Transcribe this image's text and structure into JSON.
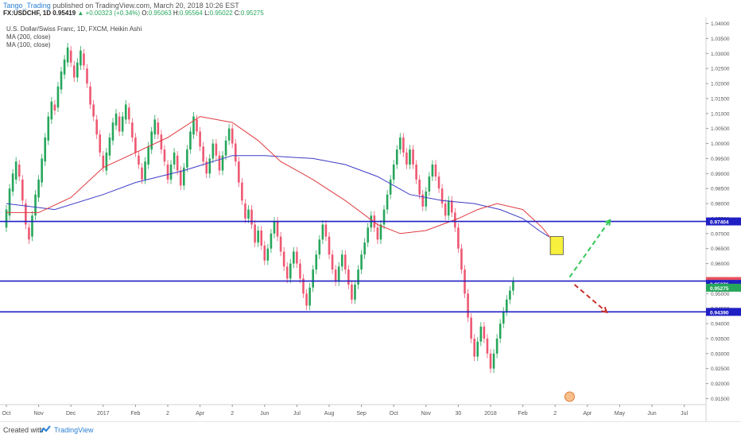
{
  "header": {
    "author": "Tango_Trading",
    "published": " published on TradingView.com, March 20, 2018 10:26 EST",
    "symbol_line": "FX:USDCHF, 1D",
    "last": "0.95419",
    "change": "+0.00323 (+0.34%)",
    "o_label": "O:",
    "o": "0.95063",
    "h_label": "H:",
    "h": "0.95564",
    "l_label": "L:",
    "l": "0.95022",
    "c_label": "C:",
    "c": "0.95275"
  },
  "legend": {
    "title": "U.S. Dollar/Swiss Franc, 1D, FXCM, Heikin Ashi",
    "ma200": "MA (200, close)",
    "ma100": "MA (100, close)"
  },
  "footer": {
    "created": "Created with",
    "brand": "TradingView"
  },
  "colors": {
    "up": "#26a65b",
    "down": "#ee5872",
    "ma200": "#3d3dc7",
    "ma100": "#e0393e",
    "hline": "#1f1fc4",
    "box_fill": "#f7f03c",
    "arrow_up": "#34c759",
    "arrow_down": "#c9302c"
  },
  "chart_data": {
    "type": "candlestick",
    "ylim": [
      0.913,
      1.042
    ],
    "y_ticks": [
      "1.04000",
      "1.03500",
      "1.03000",
      "1.02500",
      "1.02000",
      "1.01500",
      "1.01000",
      "1.00500",
      "1.00000",
      "0.99500",
      "0.99000",
      "0.98500",
      "0.98000",
      "0.97500",
      "0.97000",
      "0.96500",
      "0.96000",
      "0.95500",
      "0.95000",
      "0.94500",
      "0.94000",
      "0.93500",
      "0.93000",
      "0.92500",
      "0.92000",
      "0.91500"
    ],
    "x_ticks": [
      {
        "label": "Oct",
        "m": 0
      },
      {
        "label": "Nov",
        "m": 1
      },
      {
        "label": "Dec",
        "m": 2
      },
      {
        "label": "2017",
        "m": 3
      },
      {
        "label": "Feb",
        "m": 4
      },
      {
        "label": "2",
        "m": 5
      },
      {
        "label": "Apr",
        "m": 6
      },
      {
        "label": "2",
        "m": 7
      },
      {
        "label": "Jun",
        "m": 8
      },
      {
        "label": "Jul",
        "m": 9
      },
      {
        "label": "Aug",
        "m": 10
      },
      {
        "label": "Sep",
        "m": 11
      },
      {
        "label": "Oct",
        "m": 12
      },
      {
        "label": "Nov",
        "m": 13
      },
      {
        "label": "30",
        "m": 14
      },
      {
        "label": "2018",
        "m": 15
      },
      {
        "label": "Feb",
        "m": 16
      },
      {
        "label": "2",
        "m": 17
      },
      {
        "label": "Apr",
        "m": 18
      },
      {
        "label": "May",
        "m": 19
      },
      {
        "label": "Jun",
        "m": 20
      },
      {
        "label": "Jul",
        "m": 21
      }
    ],
    "levels": [
      {
        "name": "resistance-line",
        "value": 0.97404,
        "label": "0.97404",
        "bg": "#1f1fc4"
      },
      {
        "name": "mid-line",
        "value": 0.95418,
        "label": "0.95418",
        "bg": "#e8505b"
      },
      {
        "name": "support-line",
        "value": 0.9439,
        "label": "0.94390",
        "bg": "#1f1fc4"
      }
    ],
    "price_tags": [
      {
        "value": 0.95376,
        "label": "0.95376",
        "bg": "#1f1fc4"
      },
      {
        "value": 0.95275,
        "label": "0.95275",
        "bg": "#26a65b"
      }
    ],
    "ma200_pts": [
      [
        0,
        0.98
      ],
      [
        1.5,
        0.978
      ],
      [
        3,
        0.983
      ],
      [
        4,
        0.987
      ],
      [
        5.5,
        0.991
      ],
      [
        7,
        0.996
      ],
      [
        8,
        0.996
      ],
      [
        9.5,
        0.995
      ],
      [
        10.5,
        0.993
      ],
      [
        11.5,
        0.989
      ],
      [
        12.5,
        0.983
      ],
      [
        13.5,
        0.981
      ],
      [
        14.5,
        0.98
      ],
      [
        15.3,
        0.978
      ],
      [
        16,
        0.975
      ],
      [
        16.5,
        0.971
      ],
      [
        16.8,
        0.969
      ]
    ],
    "ma100_pts": [
      [
        0,
        0.977
      ],
      [
        1,
        0.977
      ],
      [
        2,
        0.982
      ],
      [
        3,
        0.992
      ],
      [
        4,
        0.997
      ],
      [
        5,
        1.002
      ],
      [
        6,
        1.009
      ],
      [
        7,
        1.007
      ],
      [
        7.8,
        1.001
      ],
      [
        8.5,
        0.994
      ],
      [
        9.5,
        0.988
      ],
      [
        10.5,
        0.981
      ],
      [
        11.5,
        0.973
      ],
      [
        12.2,
        0.97
      ],
      [
        13,
        0.971
      ],
      [
        14,
        0.975
      ],
      [
        14.6,
        0.978
      ],
      [
        15.2,
        0.98
      ],
      [
        16,
        0.978
      ],
      [
        16.6,
        0.972
      ],
      [
        16.9,
        0.968
      ]
    ],
    "candles": [
      [
        0,
        0.972,
        0.978
      ],
      [
        0.1,
        0.976,
        0.985
      ],
      [
        0.2,
        0.984,
        0.99
      ],
      [
        0.3,
        0.988,
        0.994
      ],
      [
        0.4,
        0.993,
        0.989
      ],
      [
        0.5,
        0.988,
        0.981
      ],
      [
        0.6,
        0.98,
        0.973
      ],
      [
        0.7,
        0.972,
        0.968
      ],
      [
        0.8,
        0.969,
        0.976
      ],
      [
        0.9,
        0.976,
        0.983
      ],
      [
        1.0,
        0.982,
        0.988
      ],
      [
        1.1,
        0.987,
        0.995
      ],
      [
        1.2,
        0.994,
        1.002
      ],
      [
        1.3,
        1.001,
        1.009
      ],
      [
        1.4,
        1.008,
        1.014
      ],
      [
        1.5,
        1.013,
        1.011
      ],
      [
        1.6,
        1.012,
        1.019
      ],
      [
        1.7,
        1.018,
        1.024
      ],
      [
        1.8,
        1.023,
        1.028
      ],
      [
        1.9,
        1.027,
        1.032
      ],
      [
        2.0,
        1.031,
        1.027
      ],
      [
        2.1,
        1.026,
        1.022
      ],
      [
        2.2,
        1.022,
        1.027
      ],
      [
        2.3,
        1.026,
        1.031
      ],
      [
        2.4,
        1.03,
        1.026
      ],
      [
        2.5,
        1.025,
        1.02
      ],
      [
        2.6,
        1.019,
        1.013
      ],
      [
        2.7,
        1.013,
        1.009
      ],
      [
        2.8,
        1.008,
        1.003
      ],
      [
        2.9,
        1.003,
        0.997
      ],
      [
        3.0,
        0.996,
        0.992
      ],
      [
        3.1,
        0.991,
        0.997
      ],
      [
        3.2,
        0.996,
        1.002
      ],
      [
        3.3,
        1.001,
        1.007
      ],
      [
        3.4,
        1.006,
        1.01
      ],
      [
        3.5,
        1.009,
        1.004
      ],
      [
        3.6,
        1.004,
        1.009
      ],
      [
        3.7,
        1.008,
        1.013
      ],
      [
        3.8,
        1.012,
        1.008
      ],
      [
        3.9,
        1.007,
        1.002
      ],
      [
        4.0,
        1.002,
        0.997
      ],
      [
        4.1,
        0.996,
        0.993
      ],
      [
        4.2,
        0.992,
        0.988
      ],
      [
        4.3,
        0.988,
        0.994
      ],
      [
        4.4,
        0.993,
        0.999
      ],
      [
        4.5,
        0.998,
        1.004
      ],
      [
        4.6,
        1.003,
        1.008
      ],
      [
        4.7,
        1.007,
        1.003
      ],
      [
        4.8,
        1.003,
        0.998
      ],
      [
        4.9,
        0.998,
        0.994
      ],
      [
        5.0,
        0.993,
        0.988
      ],
      [
        5.1,
        0.988,
        0.993
      ],
      [
        5.2,
        0.993,
        0.997
      ],
      [
        5.3,
        0.996,
        0.991
      ],
      [
        5.4,
        0.991,
        0.986
      ],
      [
        5.5,
        0.986,
        0.992
      ],
      [
        5.6,
        0.992,
        0.998
      ],
      [
        5.7,
        0.998,
        1.004
      ],
      [
        5.8,
        1.003,
        1.009
      ],
      [
        5.9,
        1.008,
        1.004
      ],
      [
        6.0,
        1.004,
        0.999
      ],
      [
        6.1,
        0.999,
        0.994
      ],
      [
        6.2,
        0.994,
        0.99
      ],
      [
        6.3,
        0.99,
        0.995
      ],
      [
        6.4,
        0.995,
        1.0
      ],
      [
        6.5,
        1.0,
        0.996
      ],
      [
        6.6,
        0.996,
        0.991
      ],
      [
        6.7,
        0.991,
        0.996
      ],
      [
        6.8,
        0.996,
        1.001
      ],
      [
        6.9,
        1.001,
        1.005
      ],
      [
        7.0,
        1.005,
        1.0
      ],
      [
        7.1,
        1.0,
        0.994
      ],
      [
        7.2,
        0.994,
        0.987
      ],
      [
        7.3,
        0.987,
        0.981
      ],
      [
        7.4,
        0.98,
        0.975
      ],
      [
        7.5,
        0.975,
        0.978
      ],
      [
        7.6,
        0.978,
        0.973
      ],
      [
        7.7,
        0.973,
        0.967
      ],
      [
        7.8,
        0.967,
        0.971
      ],
      [
        7.9,
        0.971,
        0.966
      ],
      [
        8.0,
        0.966,
        0.961
      ],
      [
        8.1,
        0.961,
        0.965
      ],
      [
        8.2,
        0.965,
        0.97
      ],
      [
        8.3,
        0.97,
        0.974
      ],
      [
        8.4,
        0.974,
        0.969
      ],
      [
        8.5,
        0.969,
        0.964
      ],
      [
        8.6,
        0.964,
        0.959
      ],
      [
        8.7,
        0.959,
        0.955
      ],
      [
        8.8,
        0.955,
        0.96
      ],
      [
        8.9,
        0.96,
        0.964
      ],
      [
        9.0,
        0.964,
        0.96
      ],
      [
        9.1,
        0.96,
        0.955
      ],
      [
        9.2,
        0.955,
        0.95
      ],
      [
        9.3,
        0.95,
        0.946
      ],
      [
        9.4,
        0.946,
        0.952
      ],
      [
        9.5,
        0.952,
        0.958
      ],
      [
        9.6,
        0.958,
        0.963
      ],
      [
        9.7,
        0.963,
        0.968
      ],
      [
        9.8,
        0.968,
        0.973
      ],
      [
        9.9,
        0.973,
        0.969
      ],
      [
        10.0,
        0.969,
        0.963
      ],
      [
        10.1,
        0.963,
        0.958
      ],
      [
        10.2,
        0.958,
        0.954
      ],
      [
        10.3,
        0.954,
        0.959
      ],
      [
        10.4,
        0.959,
        0.963
      ],
      [
        10.5,
        0.963,
        0.958
      ],
      [
        10.6,
        0.958,
        0.953
      ],
      [
        10.7,
        0.953,
        0.948
      ],
      [
        10.8,
        0.948,
        0.953
      ],
      [
        10.9,
        0.953,
        0.958
      ],
      [
        11.0,
        0.958,
        0.963
      ],
      [
        11.1,
        0.963,
        0.967
      ],
      [
        11.2,
        0.967,
        0.972
      ],
      [
        11.3,
        0.972,
        0.976
      ],
      [
        11.4,
        0.976,
        0.972
      ],
      [
        11.5,
        0.972,
        0.968
      ],
      [
        11.6,
        0.968,
        0.973
      ],
      [
        11.7,
        0.973,
        0.978
      ],
      [
        11.8,
        0.978,
        0.983
      ],
      [
        11.9,
        0.983,
        0.988
      ],
      [
        12.0,
        0.988,
        0.993
      ],
      [
        12.1,
        0.993,
        0.998
      ],
      [
        12.2,
        0.998,
        1.002
      ],
      [
        12.3,
        1.002,
        0.997
      ],
      [
        12.4,
        0.997,
        0.993
      ],
      [
        12.5,
        0.993,
        0.998
      ],
      [
        12.6,
        0.998,
        0.993
      ],
      [
        12.7,
        0.993,
        0.988
      ],
      [
        12.8,
        0.988,
        0.983
      ],
      [
        12.9,
        0.983,
        0.979
      ],
      [
        13.0,
        0.979,
        0.984
      ],
      [
        13.1,
        0.984,
        0.989
      ],
      [
        13.2,
        0.989,
        0.993
      ],
      [
        13.3,
        0.993,
        0.989
      ],
      [
        13.4,
        0.989,
        0.985
      ],
      [
        13.5,
        0.985,
        0.98
      ],
      [
        13.6,
        0.98,
        0.976
      ],
      [
        13.7,
        0.976,
        0.981
      ],
      [
        13.8,
        0.981,
        0.977
      ],
      [
        13.9,
        0.977,
        0.972
      ],
      [
        14.0,
        0.972,
        0.965
      ],
      [
        14.1,
        0.965,
        0.958
      ],
      [
        14.2,
        0.958,
        0.95
      ],
      [
        14.3,
        0.95,
        0.942
      ],
      [
        14.4,
        0.942,
        0.935
      ],
      [
        14.5,
        0.935,
        0.929
      ],
      [
        14.6,
        0.929,
        0.934
      ],
      [
        14.7,
        0.934,
        0.939
      ],
      [
        14.8,
        0.939,
        0.935
      ],
      [
        14.9,
        0.935,
        0.93
      ],
      [
        15.0,
        0.93,
        0.925
      ],
      [
        15.1,
        0.925,
        0.93
      ],
      [
        15.2,
        0.93,
        0.935
      ],
      [
        15.3,
        0.935,
        0.94
      ],
      [
        15.4,
        0.94,
        0.944
      ],
      [
        15.5,
        0.944,
        0.948
      ],
      [
        15.6,
        0.948,
        0.951
      ],
      [
        15.7,
        0.951,
        0.954
      ]
    ],
    "annotations": [
      {
        "name": "target-box",
        "kind": "rect",
        "x0": 16.85,
        "x1": 17.25,
        "y0": 0.969,
        "y1": 0.963
      },
      {
        "name": "arrow-up-dashed",
        "kind": "arrow",
        "x0": 17.45,
        "y0": 0.9555,
        "x1": 18.7,
        "y1": 0.9745,
        "color": "#34c759"
      },
      {
        "name": "arrow-down-dashed",
        "kind": "arrow",
        "x0": 17.6,
        "y0": 0.953,
        "x1": 18.6,
        "y1": 0.9438,
        "color": "#c9302c"
      }
    ]
  }
}
